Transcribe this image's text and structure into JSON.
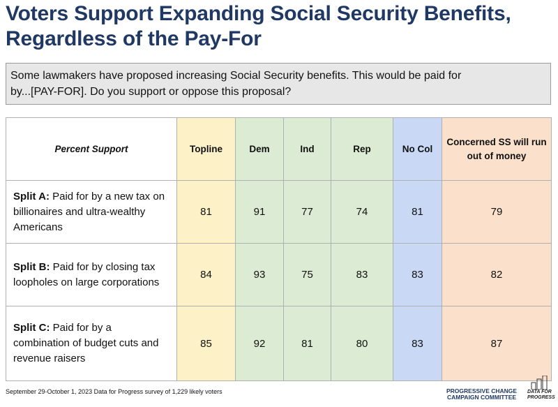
{
  "header": {
    "title_lines": [
      "Voters Support Expanding Social Security Benefits,",
      "Regardless of the Pay-For"
    ]
  },
  "question_lines": [
    "Some lawmakers have proposed increasing Social Security benefits. This would be paid for",
    "by...[PAY-FOR]. Do you support or oppose this proposal?"
  ],
  "table": {
    "corner": "Percent Support",
    "columns": [
      "Topline",
      "Dem",
      "Ind",
      "Rep",
      "No Col",
      "Concerned SS will run out of money"
    ],
    "rows": [
      {
        "label_bold": "Split A:",
        "label": "Paid for by a new tax on billionaires and ultra-wealthy Americans",
        "values": [
          "81",
          "91",
          "77",
          "74",
          "81",
          "79"
        ]
      },
      {
        "label_bold": "Split B:",
        "label": "Paid for by closing tax loopholes on large corporations",
        "values": [
          "84",
          "93",
          "75",
          "83",
          "83",
          "82"
        ]
      },
      {
        "label_bold": "Split C:",
        "label": "Paid for by a combination of budget cuts and revenue raisers",
        "values": [
          "85",
          "92",
          "81",
          "80",
          "83",
          "87"
        ]
      }
    ]
  },
  "footer": "September 29-October 1, 2023 Data for Progress survey of 1,229 likely voters",
  "logos": {
    "pccc_lines": [
      "PROGRESSIVE CHANGE",
      "CAMPAIGN COMMITTEE"
    ],
    "dfp_lines": [
      "DATA FOR",
      "PROGRESS"
    ]
  }
}
